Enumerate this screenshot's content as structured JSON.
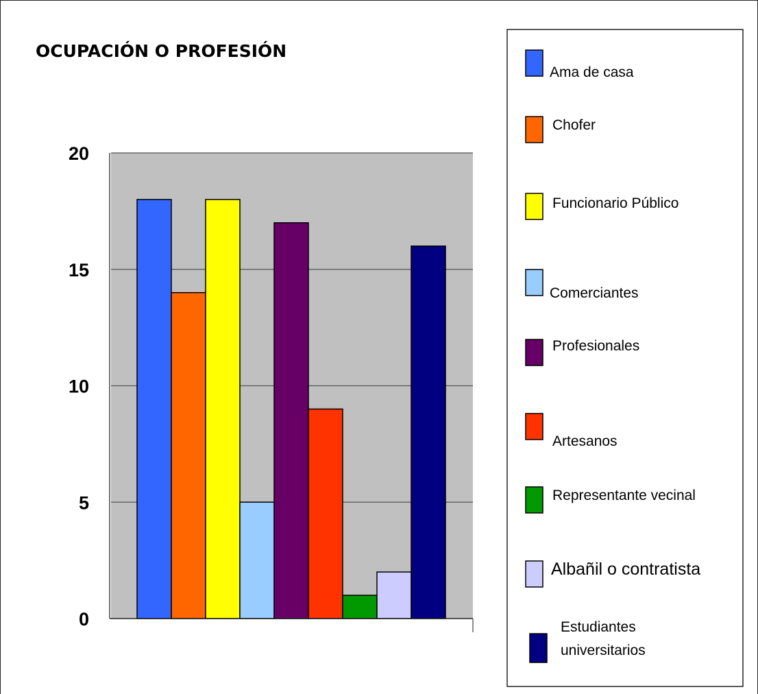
{
  "chart_data": {
    "type": "bar",
    "title": "OCUPACIÓN O PROFESIÓN",
    "xlabel": "",
    "ylabel": "",
    "ylim": [
      0,
      20
    ],
    "yticks": [
      "0",
      "5",
      "10",
      "15",
      "20"
    ],
    "grid": true,
    "legend_position": "right",
    "categories": [
      "Ama de casa",
      "Chofer",
      "Funcionario Público",
      "Comerciantes",
      "Profesionales",
      "Artesanos",
      "Representante vecinal",
      "Albañil o contratista",
      "Estudiantes universitarios"
    ],
    "values": [
      18,
      14,
      18,
      5,
      17,
      9,
      1,
      2,
      16
    ],
    "colors": [
      "#3366ff",
      "#ff6600",
      "#ffff00",
      "#99ccff",
      "#660066",
      "#ff3300",
      "#009900",
      "#ccccff",
      "#000080"
    ],
    "plot_background": "#c0c0c0"
  }
}
